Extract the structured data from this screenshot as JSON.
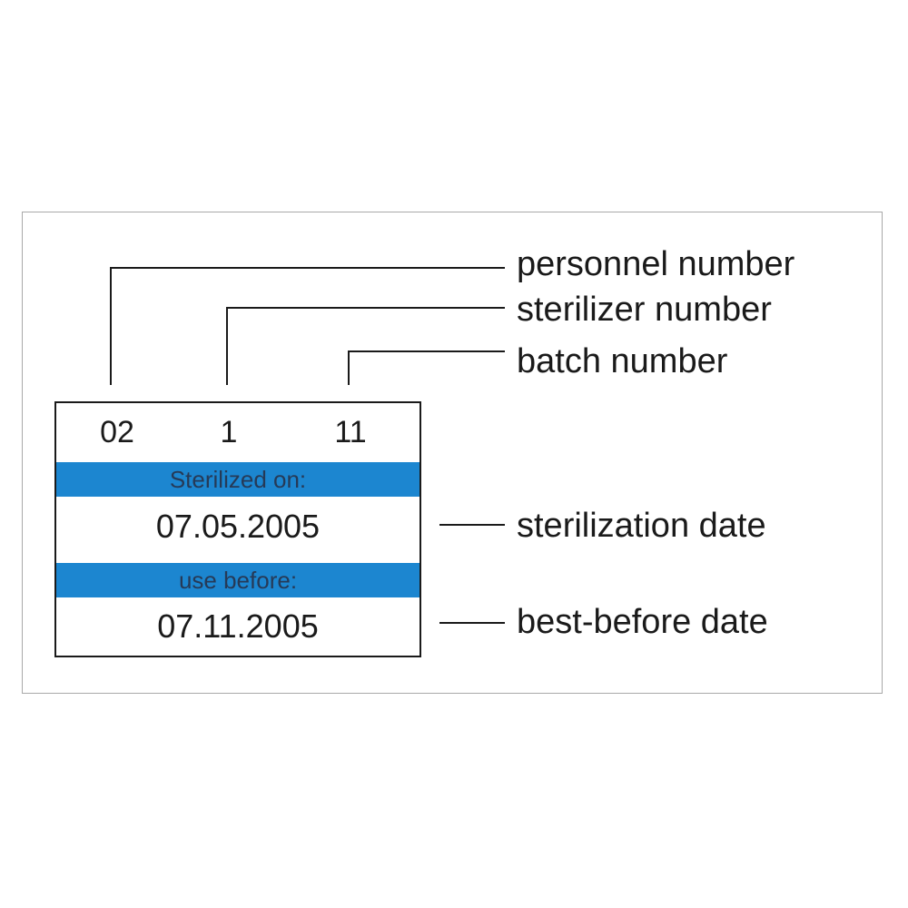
{
  "sticker": {
    "personnel_number": "02",
    "sterilizer_number": "1",
    "batch_number": "11",
    "sterilized_on_label": "Sterilized on:",
    "sterilization_date": "07.05.2005",
    "use_before_label": "use before:",
    "best_before_date": "07.11.2005",
    "band_color": "#1c86d0"
  },
  "callouts": {
    "personnel_number": "personnel number",
    "sterilizer_number": "sterilizer number",
    "batch_number": "batch number",
    "sterilization_date": "sterilization date",
    "best_before_date": "best-before date"
  }
}
